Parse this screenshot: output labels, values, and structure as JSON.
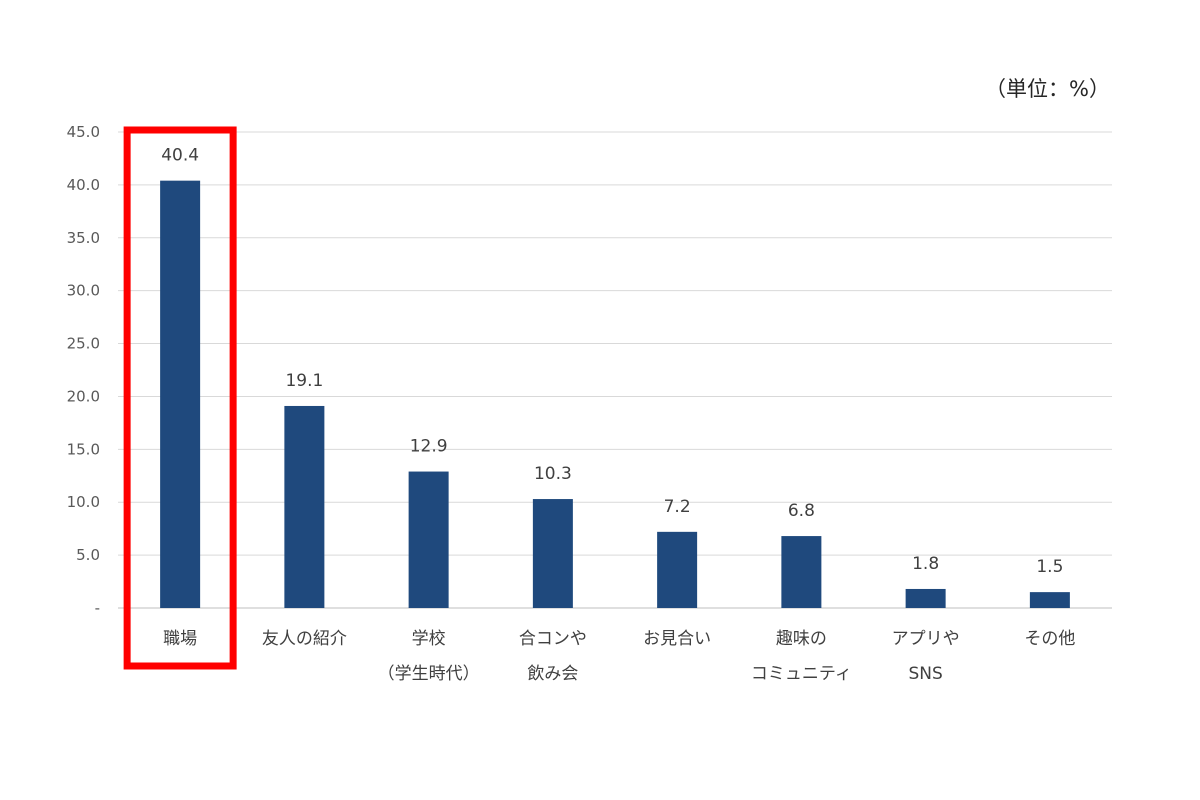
{
  "chart_data": {
    "type": "bar",
    "unit_label": "（単位：%）",
    "categories": [
      [
        "職場"
      ],
      [
        "友人の紹介"
      ],
      [
        "学校",
        "（学生時代）"
      ],
      [
        "合コンや",
        "飲み会"
      ],
      [
        "お見合い"
      ],
      [
        "趣味の",
        "コミュニティ"
      ],
      [
        "アプリや",
        "SNS"
      ],
      [
        "その他"
      ]
    ],
    "values": [
      40.4,
      19.1,
      12.9,
      10.3,
      7.2,
      6.8,
      1.8,
      1.5
    ],
    "data_labels": [
      "40.4",
      "19.1",
      "12.9",
      "10.3",
      "7.2",
      "6.8",
      "1.8",
      "1.5"
    ],
    "y_ticks": [
      "-",
      "5.0",
      "10.0",
      "15.0",
      "20.0",
      "25.0",
      "30.0",
      "35.0",
      "40.0",
      "45.0"
    ],
    "ylim": [
      0,
      45
    ],
    "grid": true,
    "highlighted_category_index": 0,
    "colors": {
      "bar": "#1f497d",
      "highlight": "#ff0000",
      "grid": "#d9d9d9"
    }
  }
}
